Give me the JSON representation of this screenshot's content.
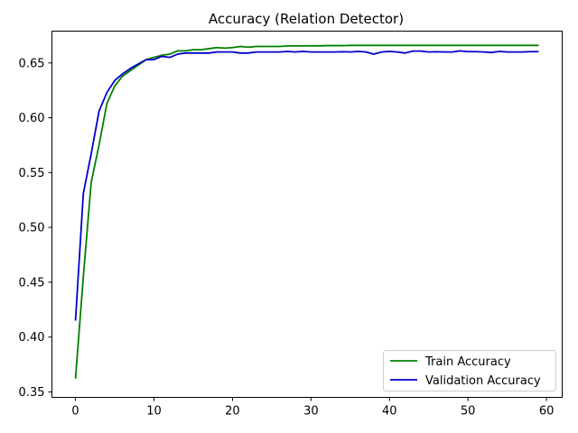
{
  "chart_data": {
    "type": "line",
    "title": "Accuracy (Relation Detector)",
    "xlabel": "",
    "ylabel": "",
    "xlim": [
      -3,
      62
    ],
    "ylim": [
      0.345,
      0.679
    ],
    "xticks": [
      0,
      10,
      20,
      30,
      40,
      50,
      60
    ],
    "yticks": [
      0.35,
      0.4,
      0.45,
      0.5,
      0.55,
      0.6,
      0.65
    ],
    "ytick_labels": [
      "0.35",
      "0.40",
      "0.45",
      "0.50",
      "0.55",
      "0.60",
      "0.65"
    ],
    "grid": false,
    "legend_position": "lower-right",
    "x": [
      0,
      1,
      2,
      3,
      4,
      5,
      6,
      7,
      8,
      9,
      10,
      11,
      12,
      13,
      14,
      15,
      16,
      17,
      18,
      19,
      20,
      21,
      22,
      23,
      24,
      25,
      26,
      27,
      28,
      29,
      30,
      31,
      32,
      33,
      34,
      35,
      36,
      37,
      38,
      39,
      40,
      41,
      42,
      43,
      44,
      45,
      46,
      47,
      48,
      49,
      50,
      51,
      52,
      53,
      54,
      55,
      56,
      57,
      58,
      59
    ],
    "series": [
      {
        "name": "Train Accuracy",
        "color": "#008000",
        "values": [
          0.362,
          0.455,
          0.541,
          0.575,
          0.613,
          0.629,
          0.638,
          0.643,
          0.648,
          0.653,
          0.655,
          0.657,
          0.658,
          0.661,
          0.661,
          0.662,
          0.662,
          0.663,
          0.664,
          0.6635,
          0.664,
          0.665,
          0.6643,
          0.665,
          0.665,
          0.665,
          0.665,
          0.6655,
          0.6655,
          0.6655,
          0.6656,
          0.6656,
          0.6658,
          0.6658,
          0.6658,
          0.666,
          0.666,
          0.666,
          0.666,
          0.666,
          0.666,
          0.666,
          0.666,
          0.666,
          0.666,
          0.666,
          0.666,
          0.666,
          0.666,
          0.666,
          0.666,
          0.666,
          0.666,
          0.666,
          0.666,
          0.666,
          0.666,
          0.666,
          0.666,
          0.666
        ]
      },
      {
        "name": "Validation Accuracy",
        "color": "#0000cc",
        "values": [
          0.415,
          0.531,
          0.567,
          0.606,
          0.623,
          0.634,
          0.64,
          0.645,
          0.649,
          0.653,
          0.653,
          0.656,
          0.655,
          0.658,
          0.659,
          0.659,
          0.659,
          0.659,
          0.66,
          0.66,
          0.66,
          0.659,
          0.659,
          0.66,
          0.66,
          0.66,
          0.66,
          0.6605,
          0.66,
          0.6605,
          0.66,
          0.66,
          0.66,
          0.66,
          0.6602,
          0.66,
          0.6605,
          0.66,
          0.658,
          0.66,
          0.6605,
          0.66,
          0.659,
          0.6608,
          0.6608,
          0.66,
          0.6602,
          0.66,
          0.66,
          0.661,
          0.6603,
          0.6603,
          0.66,
          0.6595,
          0.6605,
          0.66,
          0.66,
          0.66,
          0.6603,
          0.6603
        ]
      }
    ]
  }
}
